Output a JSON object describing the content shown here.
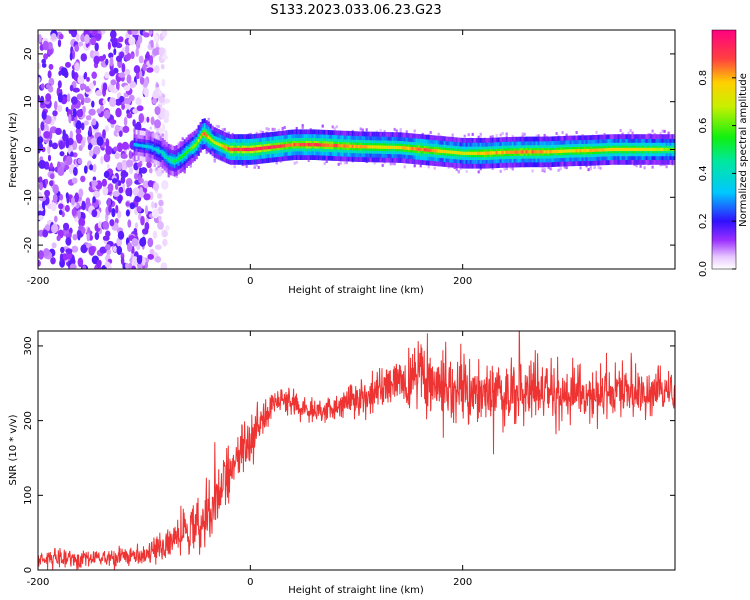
{
  "title": "S133.2023.033.06.23.G23",
  "colors": {
    "snr_line": "#ee3333",
    "axis": "#000000",
    "background": "#ffffff"
  },
  "chart_data": [
    {
      "type": "heatmap",
      "xlabel": "Height of straight line (km)",
      "ylabel": "Frequency (Hz)",
      "xlim": [
        -200,
        400
      ],
      "ylim": [
        -25,
        25
      ],
      "xticks": [
        -200,
        0,
        200
      ],
      "yticks": [
        -20,
        -10,
        0,
        10,
        20
      ],
      "grid": false,
      "colorbar": {
        "label": "Normalized spectral amplitude",
        "range": [
          0,
          1
        ],
        "ticks": [
          0.0,
          0.2,
          0.4,
          0.6,
          0.8
        ],
        "colormap": "rainbow"
      },
      "ridge": {
        "x": [
          -110,
          -95,
          -85,
          -78,
          -72,
          -65,
          -58,
          -52,
          -48,
          -45,
          -40,
          -35,
          -30,
          -25,
          -20,
          -10,
          0,
          20,
          40,
          60,
          80,
          100,
          120,
          140,
          160,
          175,
          185,
          200,
          220,
          240,
          260,
          280,
          300,
          320,
          340,
          360,
          380,
          400
        ],
        "frequency": [
          1,
          0.5,
          -0.5,
          -2,
          -2.5,
          -1.5,
          0,
          1,
          2.5,
          3.5,
          2.5,
          1.5,
          1,
          0.5,
          0,
          0,
          0,
          0.5,
          1,
          1,
          0.8,
          0.6,
          0.5,
          0.4,
          0,
          -0.3,
          -0.5,
          -0.8,
          -0.8,
          -0.6,
          -0.5,
          -0.5,
          -0.3,
          -0.2,
          0,
          0,
          0,
          0
        ],
        "amplitude": [
          0.3,
          0.35,
          0.4,
          0.45,
          0.5,
          0.55,
          0.6,
          0.65,
          0.75,
          0.85,
          0.8,
          0.7,
          0.7,
          0.8,
          0.9,
          0.9,
          0.95,
          0.9,
          0.85,
          0.9,
          0.85,
          0.8,
          0.75,
          0.75,
          0.85,
          0.8,
          0.75,
          0.7,
          0.8,
          0.8,
          0.85,
          0.8,
          0.75,
          0.8,
          0.75,
          0.75,
          0.7,
          0.6
        ]
      },
      "noise_region": {
        "x_range": [
          -200,
          -80
        ],
        "frequency_range": [
          -25,
          25
        ],
        "amplitude": 0.1
      }
    },
    {
      "type": "line",
      "xlabel": "Height of straight line (km)",
      "ylabel": "SNR (10 * v/v)",
      "xlim": [
        -200,
        400
      ],
      "ylim": [
        0,
        320
      ],
      "xticks": [
        -200,
        0,
        200
      ],
      "yticks": [
        0,
        100,
        200,
        300
      ],
      "grid": false,
      "series": [
        {
          "x": [
            -200,
            -150,
            -100,
            -80,
            -70,
            -60,
            -50,
            -40,
            -30,
            -20,
            -10,
            0,
            10,
            20,
            30,
            40,
            60,
            80,
            100,
            120,
            140,
            150,
            160,
            170,
            200,
            250,
            300,
            350,
            400
          ],
          "y": [
            15,
            15,
            20,
            30,
            40,
            50,
            60,
            80,
            100,
            130,
            160,
            170,
            200,
            220,
            230,
            225,
            210,
            220,
            230,
            240,
            250,
            255,
            260,
            250,
            240,
            235,
            235,
            240,
            235
          ],
          "noise": [
            10,
            10,
            10,
            15,
            20,
            25,
            30,
            35,
            35,
            30,
            25,
            25,
            20,
            15,
            12,
            12,
            12,
            15,
            18,
            20,
            25,
            30,
            35,
            35,
            35,
            35,
            30,
            25,
            20
          ]
        }
      ]
    }
  ]
}
